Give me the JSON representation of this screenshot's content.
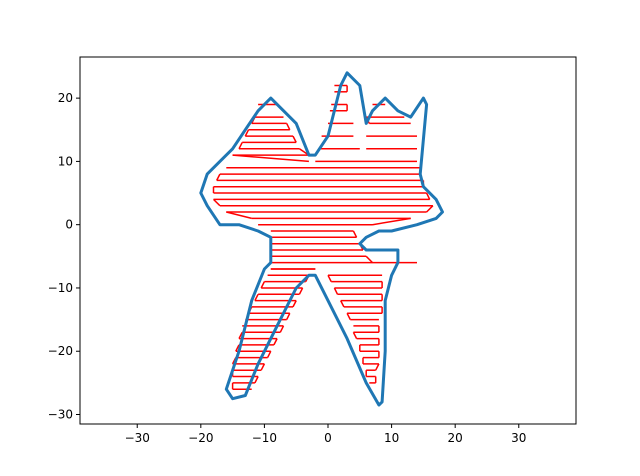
{
  "chart_data": {
    "type": "line",
    "title": "",
    "xlabel": "",
    "ylabel": "",
    "xlim": [
      -39,
      39
    ],
    "ylim": [
      -31.5,
      26.5
    ],
    "grid": false,
    "legend": "none",
    "x_ticks": [
      -30,
      -20,
      -10,
      0,
      10,
      20,
      30
    ],
    "y_ticks": [
      -30,
      -20,
      -10,
      0,
      10,
      20
    ],
    "x_tick_labels": [
      "−30",
      "−20",
      "−10",
      "0",
      "10",
      "20",
      "30"
    ],
    "y_tick_labels": [
      "−30",
      "−20",
      "−10",
      "0",
      "10",
      "20"
    ],
    "series": [
      {
        "color": "#1f77b4",
        "style": "outline",
        "x": [
          -9,
          -5,
          -3,
          -2,
          0,
          2,
          3,
          5,
          6,
          7,
          9,
          11,
          13,
          15,
          15.5,
          14.5,
          15,
          17,
          18,
          17,
          14,
          10,
          8,
          6,
          5,
          6,
          9,
          11,
          11,
          10,
          9,
          9,
          8.5,
          8,
          6,
          3,
          0,
          -2,
          -3,
          -5,
          -8,
          -11,
          -13,
          -15,
          -16,
          -14,
          -12,
          -10,
          -9,
          -9,
          -11,
          -14,
          -17,
          -19,
          -20,
          -19,
          -17,
          -15,
          -13,
          -11,
          -9
        ],
        "y": [
          20,
          16,
          11,
          11,
          14,
          22,
          24,
          22,
          16,
          18,
          20,
          18,
          17,
          20,
          19,
          8,
          6,
          4,
          2,
          1,
          0,
          -1,
          -1,
          -2,
          -3,
          -4,
          -4,
          -4,
          -6,
          -8,
          -12,
          -20,
          -28,
          -28.5,
          -25,
          -18,
          -12,
          -8,
          -8,
          -10,
          -16,
          -22,
          -27,
          -27.5,
          -26,
          -20,
          -12,
          -7,
          -6,
          -2,
          -1,
          0,
          0,
          3,
          5,
          8,
          10,
          12,
          15,
          18,
          20
        ]
      },
      {
        "color": "#ff0000",
        "style": "raster",
        "rows": [
          {
            "y": 22,
            "x0": 1,
            "x1": 3
          },
          {
            "y": 21,
            "x0": 1,
            "x1": 3
          },
          {
            "y": 19,
            "x0": -11,
            "x1": -8
          },
          {
            "y": 19,
            "x0": 0.5,
            "x1": 3
          },
          {
            "y": 19,
            "x0": 7,
            "x1": 9
          },
          {
            "y": 18,
            "x0": 0.3,
            "x1": 3
          },
          {
            "y": 17,
            "x0": -11.5,
            "x1": -7
          },
          {
            "y": 17,
            "x0": 6,
            "x1": 12
          },
          {
            "y": 16,
            "x0": -12,
            "x1": -6.5
          },
          {
            "y": 16,
            "x0": 0,
            "x1": 4
          },
          {
            "y": 16,
            "x0": 6.5,
            "x1": 13
          },
          {
            "y": 15,
            "x0": -12.5,
            "x1": -6
          },
          {
            "y": 14,
            "x0": -13,
            "x1": -5.5
          },
          {
            "y": 14,
            "x0": -1,
            "x1": 4
          },
          {
            "y": 14,
            "x0": 6,
            "x1": 14
          },
          {
            "y": 13,
            "x0": -13.5,
            "x1": -5
          },
          {
            "y": 12,
            "x0": -14,
            "x1": -4.5
          },
          {
            "y": 12,
            "x0": -1.5,
            "x1": 5
          },
          {
            "y": 12,
            "x0": 6,
            "x1": 14
          },
          {
            "y": 11,
            "x0": -15,
            "x1": -3
          },
          {
            "y": 10,
            "x0": -2,
            "x1": 14
          },
          {
            "y": 9,
            "x0": -16,
            "x1": 14.5
          },
          {
            "y": 8,
            "x0": -17,
            "x1": 14.5
          },
          {
            "y": 7,
            "x0": -17.5,
            "x1": 15
          },
          {
            "y": 6,
            "x0": -18,
            "x1": 15
          },
          {
            "y": 5,
            "x0": -18,
            "x1": 15.5
          },
          {
            "y": 4,
            "x0": -18,
            "x1": 16
          },
          {
            "y": 3,
            "x0": -17,
            "x1": 16.5
          },
          {
            "y": 2,
            "x0": -16,
            "x1": 15.5
          },
          {
            "y": 1,
            "x0": -12,
            "x1": 13
          },
          {
            "y": 0,
            "x0": -11,
            "x1": 7
          },
          {
            "y": -1,
            "x0": -9,
            "x1": 4
          },
          {
            "y": -2,
            "x0": -9,
            "x1": 4.5
          },
          {
            "y": -3,
            "x0": -9,
            "x1": 5
          },
          {
            "y": -4,
            "x0": -9,
            "x1": 5.5
          },
          {
            "y": -5,
            "x0": -9,
            "x1": 6
          },
          {
            "y": -6,
            "x0": -9,
            "x1": 7
          },
          {
            "y": -7,
            "x0": -9,
            "x1": -2
          },
          {
            "y": -8,
            "x0": -9.5,
            "x1": -3
          },
          {
            "y": -8,
            "x0": 0,
            "x1": 8.5
          },
          {
            "y": -9,
            "x0": -10,
            "x1": -3.5
          },
          {
            "y": -9,
            "x0": 0.5,
            "x1": 8.5
          },
          {
            "y": -10,
            "x0": -10.5,
            "x1": -4
          },
          {
            "y": -10,
            "x0": 1,
            "x1": 8.5
          },
          {
            "y": -11,
            "x0": -11,
            "x1": -4.5
          },
          {
            "y": -11,
            "x0": 1.5,
            "x1": 8.5
          },
          {
            "y": -12,
            "x0": -11.5,
            "x1": -5
          },
          {
            "y": -12,
            "x0": 2,
            "x1": 8.5
          },
          {
            "y": -13,
            "x0": -12,
            "x1": -5.5
          },
          {
            "y": -13,
            "x0": 2.5,
            "x1": 8.5
          },
          {
            "y": -14,
            "x0": -12.5,
            "x1": -6
          },
          {
            "y": -14,
            "x0": 3,
            "x1": 8.5
          },
          {
            "y": -15,
            "x0": -13,
            "x1": -6.5
          },
          {
            "y": -15,
            "x0": 3.5,
            "x1": 8
          },
          {
            "y": -16,
            "x0": -13.5,
            "x1": -7
          },
          {
            "y": -16,
            "x0": 4,
            "x1": 8
          },
          {
            "y": -17,
            "x0": -13.5,
            "x1": -7.5
          },
          {
            "y": -17,
            "x0": 4,
            "x1": 8
          },
          {
            "y": -18,
            "x0": -14,
            "x1": -8
          },
          {
            "y": -18,
            "x0": 4.5,
            "x1": 8
          },
          {
            "y": -19,
            "x0": -14,
            "x1": -8.5
          },
          {
            "y": -19,
            "x0": 5,
            "x1": 8
          },
          {
            "y": -20,
            "x0": -14.5,
            "x1": -9
          },
          {
            "y": -20,
            "x0": 5,
            "x1": 8
          },
          {
            "y": -21,
            "x0": -14.5,
            "x1": -9.5
          },
          {
            "y": -21,
            "x0": 5.5,
            "x1": 8
          },
          {
            "y": -22,
            "x0": -15,
            "x1": -10
          },
          {
            "y": -22,
            "x0": 5.5,
            "x1": 8
          },
          {
            "y": -23,
            "x0": -15,
            "x1": -10.5
          },
          {
            "y": -23,
            "x0": 6,
            "x1": 7.5
          },
          {
            "y": -24,
            "x0": -15,
            "x1": -11
          },
          {
            "y": -24,
            "x0": 6,
            "x1": 7.5
          },
          {
            "y": -25,
            "x0": -15,
            "x1": -11.5
          },
          {
            "y": -25,
            "x0": 6.5,
            "x1": 7.5
          },
          {
            "y": -26,
            "x0": -15,
            "x1": -12
          }
        ],
        "connectors": [
          {
            "x": [
              -15,
              -3
            ],
            "y": [
              11,
              10
            ]
          },
          {
            "x": [
              7,
              14
            ],
            "y": [
              -6,
              -6
            ]
          },
          {
            "x": [
              -9,
              -2
            ],
            "y": [
              -7,
              -7
            ]
          }
        ]
      }
    ]
  }
}
